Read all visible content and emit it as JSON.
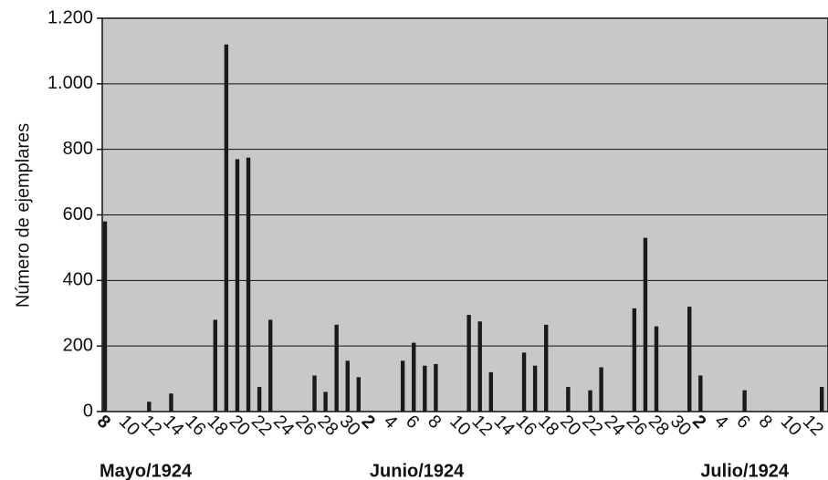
{
  "chart_data": {
    "type": "bar",
    "y_label": "Número de ejemplares",
    "categories": [
      "8",
      null,
      "10",
      null,
      "12",
      null,
      "14",
      null,
      "16",
      null,
      "18",
      null,
      "20",
      null,
      "22",
      null,
      "24",
      null,
      "26",
      null,
      "28",
      null,
      "30",
      null,
      "2",
      null,
      "4",
      null,
      "6",
      null,
      "8",
      null,
      "10",
      null,
      "12",
      null,
      "14",
      null,
      "16",
      null,
      "18",
      null,
      "20",
      null,
      "22",
      null,
      "24",
      null,
      "26",
      null,
      "28",
      null,
      "30",
      null,
      "2",
      null,
      "4",
      null,
      "6",
      null,
      "8",
      null,
      "10",
      null,
      "12",
      null
    ],
    "values": [
      580,
      0,
      0,
      0,
      30,
      0,
      55,
      0,
      0,
      0,
      280,
      1120,
      770,
      775,
      75,
      280,
      0,
      0,
      0,
      110,
      60,
      265,
      155,
      105,
      0,
      0,
      0,
      155,
      210,
      140,
      145,
      0,
      0,
      295,
      275,
      120,
      0,
      0,
      180,
      140,
      265,
      0,
      75,
      0,
      65,
      135,
      0,
      0,
      315,
      530,
      260,
      0,
      0,
      320,
      110,
      0,
      0,
      0,
      65,
      0,
      0,
      0,
      0,
      0,
      0,
      75
    ],
    "months": [
      {
        "name": "Mayo/1924",
        "first": 0
      },
      {
        "name": "Junio/1924",
        "first": 24
      },
      {
        "name": "Julio/1924",
        "first": 54
      }
    ],
    "color": "#1a1a1a",
    "background": "#c8c8c8",
    "ylim": [
      0,
      1200
    ],
    "yticks": [
      0,
      200,
      400,
      600,
      800,
      {
        "value": 1000,
        "label": "1.000"
      },
      {
        "value": 1200,
        "label": "1.200"
      }
    ],
    "grid": true
  }
}
